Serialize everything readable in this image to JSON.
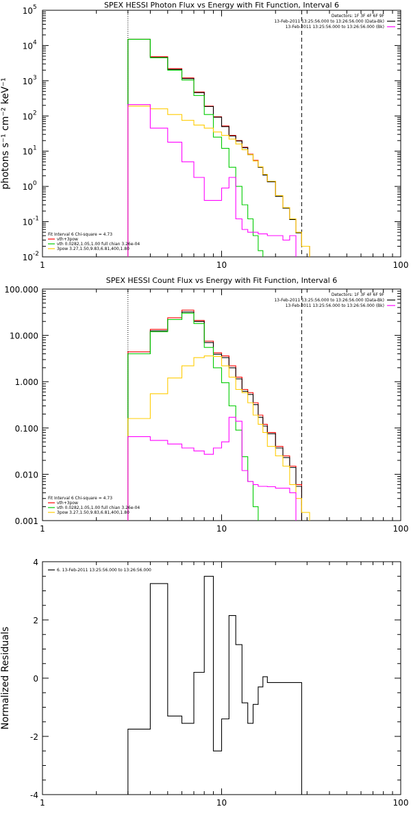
{
  "chart_data": [
    {
      "type": "line",
      "title": "SPEX HESSI Photon Flux vs Energy with Fit Function, Interval 6",
      "xlabel": "",
      "ylabel": "photons s⁻¹ cm⁻² keV⁻¹",
      "xscale": "log",
      "yscale": "log",
      "xlim": [
        1,
        100
      ],
      "ylim": [
        0.01,
        100000
      ],
      "x_ticks": [
        {
          "v": 1,
          "label": "1"
        },
        {
          "v": 10,
          "label": "10"
        },
        {
          "v": 100,
          "label": "100"
        }
      ],
      "y_ticks": [
        {
          "v": 0.01,
          "base": "10",
          "exp": "-2"
        },
        {
          "v": 0.1,
          "base": "10",
          "exp": "-1"
        },
        {
          "v": 1,
          "base": "10",
          "exp": "0"
        },
        {
          "v": 10,
          "base": "10",
          "exp": "1"
        },
        {
          "v": 100,
          "base": "10",
          "exp": "2"
        },
        {
          "v": 1000,
          "base": "10",
          "exp": "3"
        },
        {
          "v": 10000,
          "base": "10",
          "exp": "4"
        },
        {
          "v": 100000,
          "base": "10",
          "exp": "5"
        }
      ],
      "vlines": [
        {
          "x": 3,
          "style": "dotted"
        },
        {
          "x": 28,
          "style": "dashed"
        }
      ],
      "legend_top": [
        {
          "text": "Detectors: 1F 3F 4F 6F 9F",
          "color": ""
        },
        {
          "text": "13-Feb-2011 13:25:56.000 to 13:26:56.000 (Data-Bk)",
          "color": "#000000"
        },
        {
          "text": "13-Feb-2011 13:25:56.000 to 13:26:56.000 (Bk)",
          "color": "#ff00ff"
        }
      ],
      "legend_bottom": [
        {
          "text": "Fit Interval 6    Chi-square = 4.73",
          "color": ""
        },
        {
          "text": "vth+3pow",
          "color": "#ff0000"
        },
        {
          "text": "vth 0.0282,1.05,1.00  full chian 3.26e-04",
          "color": "#00cc00"
        },
        {
          "text": "3pow 3.27,1.50,9.83,6.81,400,1.80",
          "color": "#ffcc00"
        }
      ],
      "edges": [
        3,
        4,
        5,
        6,
        7,
        8,
        9,
        10,
        11,
        12,
        13,
        14,
        15,
        16,
        17,
        18,
        20,
        22,
        24,
        26,
        28,
        31,
        34,
        37
      ],
      "series": [
        {
          "name": "vth+3pow",
          "color": "#ff0000",
          "start": 0,
          "values": [
            15000,
            4800,
            2200,
            1200,
            480,
            190,
            95,
            52,
            28,
            20,
            13,
            8.2,
            5.5,
            3.6,
            2.2,
            1.4,
            0.55,
            0.25,
            0.12,
            0.05,
            0.02
          ]
        },
        {
          "name": "Data-Bk",
          "color": "#000000",
          "start": 0,
          "values": [
            15000,
            4600,
            2100,
            1150,
            460,
            185,
            92,
            50,
            27,
            19.5,
            12.5,
            8.0,
            5.3,
            3.5,
            2.1,
            1.35,
            0.52,
            0.24,
            0.115,
            0.048,
            0.02
          ]
        },
        {
          "name": "vth",
          "color": "#00cc00",
          "start": 0,
          "values": [
            15000,
            4500,
            2000,
            1050,
            380,
            110,
            25,
            12,
            3.5,
            1.0,
            0.3,
            0.12,
            0.04,
            0.015,
            0.006
          ]
        },
        {
          "name": "3pow",
          "color": "#ffcc00",
          "start": 0,
          "values": [
            190,
            160,
            110,
            75,
            55,
            45,
            35,
            28,
            22,
            16,
            11,
            8.0,
            5.3,
            3.6,
            2.2,
            1.4,
            0.55,
            0.25,
            0.12,
            0.05,
            0.02,
            0.008,
            0.004
          ]
        },
        {
          "name": "Bk",
          "color": "#ff00ff",
          "start": 0,
          "values": [
            210,
            45,
            18,
            5.0,
            1.8,
            0.4,
            0.4,
            0.9,
            1.8,
            0.12,
            0.06,
            0.05,
            0.05,
            0.045,
            0.045,
            0.04,
            0.04,
            0.03,
            0.04,
            0.005
          ]
        }
      ]
    },
    {
      "type": "line",
      "title": "SPEX HESSI Count Flux vs Energy with Fit Function, Interval 6",
      "xlabel": "",
      "ylabel": "",
      "xscale": "log",
      "yscale": "log",
      "xlim": [
        1,
        100
      ],
      "ylim": [
        0.001,
        100
      ],
      "x_ticks": [
        {
          "v": 1,
          "label": "1"
        },
        {
          "v": 10,
          "label": "10"
        },
        {
          "v": 100,
          "label": "100"
        }
      ],
      "y_ticks": [
        {
          "v": 0.001,
          "label": "0.001"
        },
        {
          "v": 0.01,
          "label": "0.010"
        },
        {
          "v": 0.1,
          "label": "0.100"
        },
        {
          "v": 1,
          "label": "1.000"
        },
        {
          "v": 10,
          "label": "10.000"
        },
        {
          "v": 100,
          "label": "100.000"
        }
      ],
      "vlines": [
        {
          "x": 3,
          "style": "dotted"
        },
        {
          "x": 28,
          "style": "dashed"
        }
      ],
      "legend_top": [
        {
          "text": "Detectors: 1F 3F 4F 6F 9F",
          "color": ""
        },
        {
          "text": "13-Feb-2011 13:25:56.000 to 13:26:56.000 (Data-Bk)",
          "color": "#000000"
        },
        {
          "text": "13-Feb-2011 13:25:56.000 to 13:26:56.000 (Bk)",
          "color": "#ff00ff"
        }
      ],
      "legend_bottom": [
        {
          "text": "Fit Interval 6    Chi-square = 4.73",
          "color": ""
        },
        {
          "text": "vth+3pow",
          "color": "#ff0000"
        },
        {
          "text": "vth 0.0282,1.05,1.00  full chian 3.26e-04",
          "color": "#00cc00"
        },
        {
          "text": "3pow 3.27,1.50,9.83,6.81,400,1.80",
          "color": "#ffcc00"
        }
      ],
      "edges": [
        3,
        4,
        5,
        6,
        7,
        8,
        9,
        10,
        11,
        12,
        13,
        14,
        15,
        16,
        17,
        18,
        20,
        22,
        24,
        26,
        28,
        31,
        34,
        37
      ],
      "series": [
        {
          "name": "vth+3pow",
          "color": "#ff0000",
          "start": 0,
          "values": [
            4.4,
            13.5,
            24,
            35,
            21,
            7.5,
            4.2,
            3.6,
            2.2,
            1.25,
            0.68,
            0.58,
            0.35,
            0.19,
            0.12,
            0.08,
            0.04,
            0.025,
            0.015,
            0.006
          ]
        },
        {
          "name": "Data-Bk",
          "color": "#000000",
          "start": 0,
          "values": [
            4.0,
            12.5,
            22,
            32,
            20,
            7.0,
            3.9,
            3.3,
            2.0,
            1.15,
            0.62,
            0.53,
            0.32,
            0.17,
            0.11,
            0.075,
            0.037,
            0.023,
            0.014,
            0.0055
          ]
        },
        {
          "name": "vth",
          "color": "#00cc00",
          "start": 0,
          "values": [
            4.0,
            12,
            22,
            30,
            18,
            5.5,
            2.0,
            0.95,
            0.3,
            0.09,
            0.024,
            0.007,
            0.002,
            0.0007
          ]
        },
        {
          "name": "3pow",
          "color": "#ffcc00",
          "start": 0,
          "values": [
            0.16,
            0.55,
            1.2,
            2.2,
            3.3,
            3.6,
            3.5,
            2.2,
            1.25,
            0.68,
            0.58,
            0.35,
            0.19,
            0.12,
            0.08,
            0.04,
            0.025,
            0.015,
            0.006,
            0.003,
            0.0015,
            0.0006
          ]
        },
        {
          "name": "Bk",
          "color": "#ff00ff",
          "start": 0,
          "values": [
            0.065,
            0.054,
            0.045,
            0.037,
            0.032,
            0.027,
            0.037,
            0.05,
            0.17,
            0.14,
            0.012,
            0.007,
            0.006,
            0.0055,
            0.0055,
            0.0054,
            0.005,
            0.005,
            0.004,
            0.0004
          ]
        }
      ]
    },
    {
      "type": "line",
      "title": "",
      "xlabel": "",
      "ylabel": "Normalized Residuals",
      "xscale": "log",
      "yscale": "linear",
      "xlim": [
        1,
        100
      ],
      "ylim": [
        -4,
        4
      ],
      "x_ticks": [
        {
          "v": 1,
          "label": "1"
        },
        {
          "v": 10,
          "label": "10"
        },
        {
          "v": 100,
          "label": "100"
        }
      ],
      "y_ticks": [
        {
          "v": -4,
          "label": "-4"
        },
        {
          "v": -2,
          "label": "-2"
        },
        {
          "v": 0,
          "label": "0"
        },
        {
          "v": 2,
          "label": "2"
        },
        {
          "v": 4,
          "label": "4"
        }
      ],
      "legend_top_left": {
        "text": "6. 13-Feb-2011 13:25:56.000 to 13:26:56.000",
        "color": "#000000"
      },
      "edges": [
        3,
        4,
        5,
        6,
        7,
        8,
        9,
        10,
        11,
        12,
        13,
        14,
        15,
        16,
        17,
        18,
        20,
        22,
        24,
        26,
        28
      ],
      "series": [
        {
          "name": "6. 13-Feb-2011 13:25:56.000 to 13:26:56.000",
          "color": "#000000",
          "start": 0,
          "values": [
            -1.75,
            3.25,
            -1.3,
            -1.55,
            0.2,
            3.5,
            -2.5,
            -1.4,
            2.15,
            1.15,
            -0.85,
            -1.55,
            -0.9,
            -0.3,
            0.05,
            -0.15,
            -0.15,
            -0.15,
            -0.15,
            -0.15
          ]
        }
      ]
    }
  ]
}
